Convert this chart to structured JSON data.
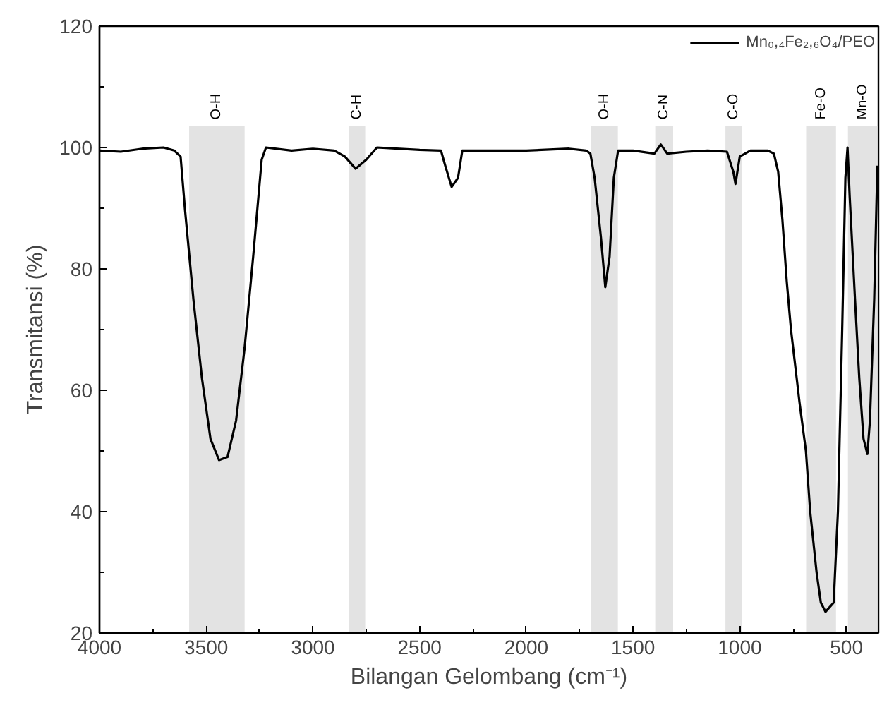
{
  "chart_data": {
    "type": "line",
    "xlabel": "Bilangan Gelombang (cm⁻¹)",
    "ylabel": "Transmitansi (%)",
    "xlim": [
      4000,
      350
    ],
    "ylim": [
      20,
      120
    ],
    "xticks": [
      4000,
      3500,
      3000,
      2500,
      2000,
      1500,
      1000,
      500
    ],
    "yticks": [
      20,
      40,
      60,
      80,
      100,
      120
    ],
    "grid": false,
    "legend": "top right",
    "marker": "none",
    "line_style": "solid",
    "series": [
      {
        "name": "Mn₀,₄Fe₂,₆O₄/PEO",
        "color": "#000000",
        "x": [
          4000,
          3900,
          3800,
          3700,
          3650,
          3620,
          3600,
          3560,
          3520,
          3480,
          3440,
          3400,
          3360,
          3320,
          3280,
          3240,
          3220,
          3100,
          3000,
          2900,
          2850,
          2800,
          2750,
          2700,
          2500,
          2400,
          2380,
          2350,
          2320,
          2300,
          2200,
          2000,
          1800,
          1720,
          1700,
          1680,
          1650,
          1630,
          1610,
          1590,
          1570,
          1500,
          1400,
          1370,
          1340,
          1250,
          1150,
          1060,
          1030,
          1020,
          1000,
          950,
          870,
          840,
          820,
          800,
          780,
          760,
          720,
          690,
          670,
          640,
          620,
          598,
          560,
          540,
          520,
          505,
          495,
          485,
          460,
          440,
          420,
          402,
          390,
          370,
          355
        ],
        "values": [
          99.5,
          99.3,
          99.8,
          100,
          99.5,
          98.5,
          90,
          75,
          62,
          52,
          48.5,
          49,
          55,
          67,
          82,
          98,
          100,
          99.5,
          99.8,
          99.5,
          98.5,
          96.5,
          98,
          100,
          99.6,
          99.5,
          97,
          93.5,
          95,
          99.5,
          99.5,
          99.5,
          99.8,
          99.5,
          99,
          95,
          85,
          77,
          82,
          95,
          99.5,
          99.5,
          99,
          100.5,
          99,
          99.3,
          99.5,
          99.3,
          96,
          94,
          98.5,
          99.5,
          99.5,
          99,
          96,
          88,
          78,
          70,
          58,
          50,
          40,
          30,
          25,
          23.5,
          25,
          40,
          70,
          95,
          100,
          92,
          75,
          62,
          52,
          49.5,
          55,
          75,
          97
        ]
      }
    ],
    "bands": [
      {
        "axis": "x",
        "from": 3580,
        "to": 3320,
        "label": "O-H",
        "color": "#e3e3e3"
      },
      {
        "axis": "x",
        "from": 2830,
        "to": 2755,
        "label": "C-H",
        "color": "#e3e3e3"
      },
      {
        "axis": "x",
        "from": 1697,
        "to": 1571,
        "label": "O-H",
        "color": "#e3e3e3"
      },
      {
        "axis": "x",
        "from": 1396,
        "to": 1312,
        "label": "C-N",
        "color": "#e3e3e3"
      },
      {
        "axis": "x",
        "from": 1067,
        "to": 990,
        "label": "C-O",
        "color": "#e3e3e3"
      },
      {
        "axis": "x",
        "from": 689,
        "to": 549,
        "label": "Fe-O",
        "color": "#e3e3e3"
      },
      {
        "axis": "x",
        "from": 493,
        "to": 355,
        "label": "Mn-O",
        "color": "#e3e3e3"
      }
    ]
  }
}
